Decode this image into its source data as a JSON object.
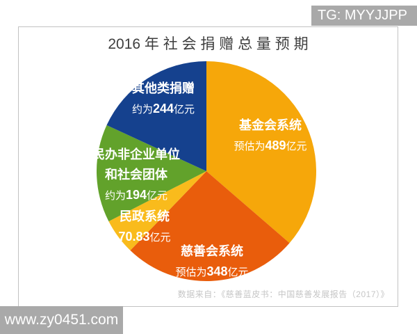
{
  "title": "2016 年 社 会 捐 赠 总 量 预 期",
  "source": "数据来自：《慈善蓝皮书：中国慈善发展报告（2017）》",
  "watermarks": {
    "top": "TG: MYYJJPP",
    "bottom": "www.zy0451.com"
  },
  "chart_data": {
    "type": "pie",
    "title": "2016年社会捐赠总量预期",
    "unit": "亿元",
    "start_angle_deg": 0,
    "direction": "clockwise",
    "legend_position": "labels-on-slices",
    "slices": [
      {
        "name": "基金会系统",
        "value": 489,
        "label_prefix": "预估为",
        "label_number": "489",
        "label_suffix": "亿元",
        "color": "#F6A70A"
      },
      {
        "name": "慈善会系统",
        "value": 348,
        "label_prefix": "预估为",
        "label_number": "348",
        "label_suffix": "亿元",
        "color": "#E95D0C"
      },
      {
        "name": "民政系统",
        "value": 70.83,
        "label_prefix": "",
        "label_number": "70.83",
        "label_suffix": "亿元",
        "color": "#F9BB1C"
      },
      {
        "name": "民办非企业单位和社会团体",
        "name_lines": [
          "民办非企业单位",
          "和社会团体"
        ],
        "value": 194,
        "label_prefix": "约为",
        "label_number": "194",
        "label_suffix": "亿元",
        "color": "#62A22B"
      },
      {
        "name": "其他类捐赠",
        "value": 244,
        "label_prefix": "约为",
        "label_number": "244",
        "label_suffix": "亿元",
        "color": "#15418E"
      }
    ]
  }
}
